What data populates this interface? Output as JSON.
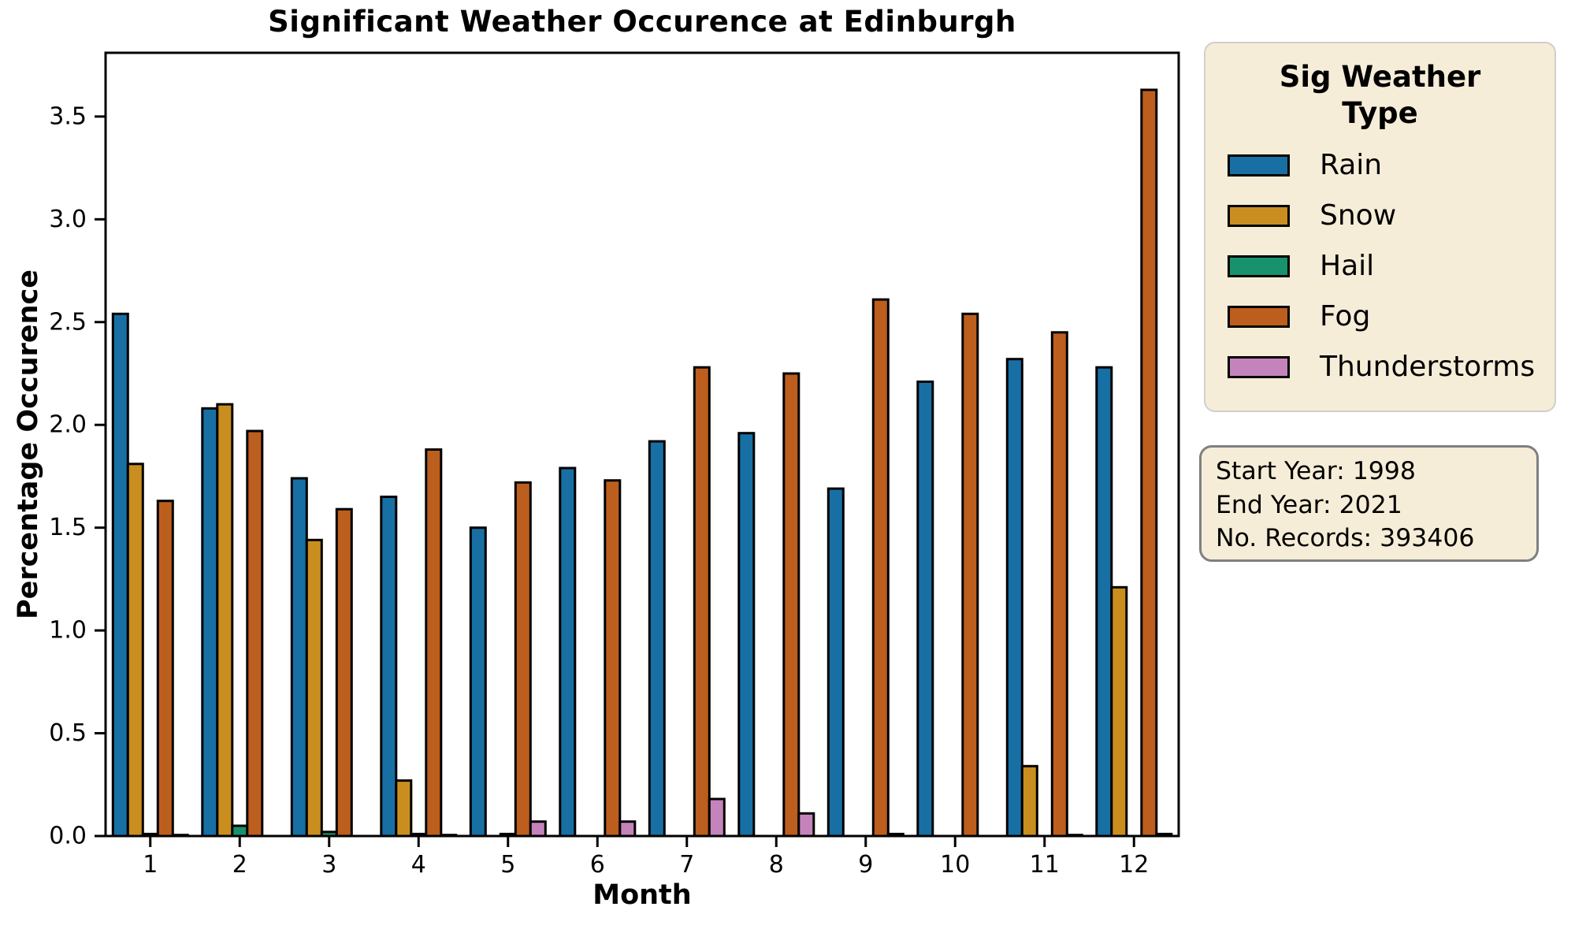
{
  "figure": {
    "background": "#ffffff"
  },
  "chart_data": {
    "type": "bar",
    "title": "Significant Weather Occurence at Edinburgh",
    "xlabel": "Month",
    "ylabel": "Percentage Occurence",
    "categories": [
      "1",
      "2",
      "3",
      "4",
      "5",
      "6",
      "7",
      "8",
      "9",
      "10",
      "11",
      "12"
    ],
    "series": [
      {
        "name": "Rain",
        "color": "#186FA4",
        "values": [
          2.54,
          2.08,
          1.74,
          1.65,
          1.5,
          1.79,
          1.92,
          1.96,
          1.69,
          2.21,
          2.32,
          2.28
        ]
      },
      {
        "name": "Snow",
        "color": "#C98E1F",
        "values": [
          1.81,
          2.1,
          1.44,
          0.27,
          0,
          0,
          0,
          0,
          0,
          0,
          0.34,
          1.21
        ]
      },
      {
        "name": "Hail",
        "color": "#17926C",
        "values": [
          0.01,
          0.05,
          0.02,
          0.01,
          0.01,
          0,
          0,
          0,
          0,
          0,
          0,
          0
        ]
      },
      {
        "name": "Fog",
        "color": "#BC5E1E",
        "values": [
          1.63,
          1.97,
          1.59,
          1.88,
          1.72,
          1.73,
          2.28,
          2.25,
          2.61,
          2.54,
          2.45,
          3.63
        ]
      },
      {
        "name": "Thunderstorms",
        "color": "#C583BB",
        "values": [
          0.005,
          0,
          0,
          0.005,
          0.07,
          0.07,
          0.18,
          0.11,
          0.01,
          0,
          0.005,
          0.01
        ]
      }
    ],
    "ylim": [
      0,
      3.81
    ],
    "yticks": [
      "0.0",
      "0.5",
      "1.0",
      "1.5",
      "2.0",
      "2.5",
      "3.0",
      "3.5"
    ],
    "grid": false,
    "legend_position": "right",
    "bar_edge_color": "#000000",
    "axis_color": "#000000"
  },
  "legend": {
    "title": "Sig Weather Type",
    "background": "#F6EDD8"
  },
  "info_box": {
    "background": "#F6EDD8",
    "lines": [
      "Start Year: 1998",
      "End Year: 2021",
      "No. Records: 393406"
    ]
  }
}
